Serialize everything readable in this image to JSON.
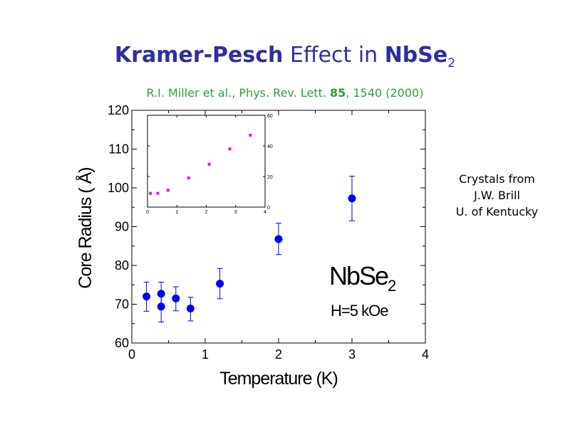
{
  "slide": {
    "title_part1": "Kramer-Pesch",
    "title_part2": " Effect in ",
    "title_part3": "NbSe",
    "title_sub": "2",
    "citation_part1": "R.I. Miller et al., Phys. Rev. Lett. ",
    "citation_volume": "85",
    "citation_part2": ", 1540 (2000)",
    "credit_line1": "Crystals from",
    "credit_line2": "J.W. Brill",
    "credit_line3": "U. of Kentucky"
  },
  "annotations": {
    "material": "NbSe",
    "material_sub": "2",
    "field": "H=5 kOe"
  },
  "colors": {
    "title": "#2e2e9e",
    "citation": "#2f9e3a",
    "main_points": "#0000ee",
    "inset_points": "#ee00ee"
  },
  "chart_data": [
    {
      "type": "scatter",
      "title": "",
      "xlabel": "Temperature (K)",
      "ylabel": "Core Radius ( Å)",
      "xlim": [
        0,
        4
      ],
      "ylim": [
        60,
        120
      ],
      "xticks": [
        0,
        1,
        2,
        3,
        4
      ],
      "yticks": [
        60,
        70,
        80,
        90,
        100,
        110,
        120
      ],
      "grid": false,
      "series": [
        {
          "points": [
            {
              "x": 0.2,
              "y": 72.0,
              "yerr_low": 68.2,
              "yerr_high": 75.7
            },
            {
              "x": 0.4,
              "y": 72.7,
              "yerr_low": 69.5,
              "yerr_high": 75.7
            },
            {
              "x": 0.4,
              "y": 69.4,
              "yerr_low": 65.4,
              "yerr_high": 72.8
            },
            {
              "x": 0.6,
              "y": 71.5,
              "yerr_low": 68.3,
              "yerr_high": 74.5
            },
            {
              "x": 0.8,
              "y": 68.9,
              "yerr_low": 65.7,
              "yerr_high": 71.8
            },
            {
              "x": 1.2,
              "y": 75.3,
              "yerr_low": 71.4,
              "yerr_high": 79.2
            },
            {
              "x": 2.0,
              "y": 86.8,
              "yerr_low": 82.8,
              "yerr_high": 90.9
            },
            {
              "x": 3.0,
              "y": 97.3,
              "yerr_low": 91.5,
              "yerr_high": 103.0
            }
          ]
        }
      ]
    },
    {
      "type": "scatter",
      "title": "",
      "xlabel": "",
      "ylabel": "",
      "xlim": [
        0,
        4
      ],
      "ylim": [
        0,
        60
      ],
      "xticks": [
        0,
        1,
        2,
        3,
        4
      ],
      "yticks": [
        0,
        20,
        40,
        60
      ],
      "grid": false,
      "series": [
        {
          "points": [
            {
              "x": 0.1,
              "y": 9
            },
            {
              "x": 0.35,
              "y": 9
            },
            {
              "x": 0.7,
              "y": 11
            },
            {
              "x": 1.4,
              "y": 19
            },
            {
              "x": 2.1,
              "y": 28
            },
            {
              "x": 2.8,
              "y": 38
            },
            {
              "x": 3.5,
              "y": 47
            }
          ]
        }
      ]
    }
  ]
}
